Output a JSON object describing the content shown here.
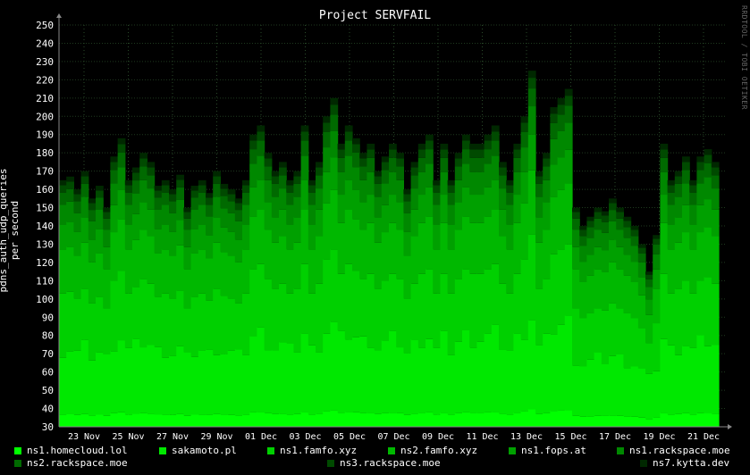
{
  "chart_data": {
    "type": "area",
    "title": "Project SERVFAIL",
    "ylabel": "pdns_auth_udp_queries per second",
    "watermark": "RRDTOOL / TOBI OETIKER",
    "ylim": [
      30,
      250
    ],
    "yticks": [
      30,
      40,
      50,
      60,
      70,
      80,
      90,
      100,
      110,
      120,
      130,
      140,
      150,
      160,
      170,
      180,
      190,
      200,
      210,
      220,
      230,
      240,
      250
    ],
    "xticks": [
      "23 Nov",
      "25 Nov",
      "27 Nov",
      "29 Nov",
      "01 Dec",
      "03 Dec",
      "05 Dec",
      "07 Dec",
      "09 Dec",
      "11 Dec",
      "13 Dec",
      "15 Dec",
      "17 Dec",
      "19 Dec",
      "21 Dec"
    ],
    "background": "#000000",
    "grid": true,
    "stacked": true,
    "legend_position": "bottom",
    "series": [
      {
        "name": "ns1.homecloud.lol",
        "color": "#00ff00"
      },
      {
        "name": "sakamoto.pl",
        "color": "#00e800"
      },
      {
        "name": "ns1.famfo.xyz",
        "color": "#00d000"
      },
      {
        "name": "ns2.famfo.xyz",
        "color": "#00b800"
      },
      {
        "name": "ns1.fops.at",
        "color": "#00a000"
      },
      {
        "name": "ns1.rackspace.moe",
        "color": "#008800"
      },
      {
        "name": "ns2.rackspace.moe",
        "color": "#006a00"
      },
      {
        "name": "ns3.rackspace.moe",
        "color": "#004a00"
      },
      {
        "name": "ns7.kytta.dev",
        "color": "#002800"
      }
    ],
    "totals": [
      165,
      167,
      160,
      170,
      155,
      162,
      150,
      178,
      188,
      165,
      172,
      180,
      175,
      162,
      165,
      160,
      168,
      150,
      162,
      165,
      158,
      170,
      163,
      160,
      155,
      165,
      190,
      195,
      180,
      170,
      175,
      165,
      170,
      195,
      165,
      175,
      200,
      210,
      185,
      195,
      188,
      180,
      185,
      170,
      178,
      185,
      180,
      160,
      175,
      185,
      190,
      165,
      185,
      165,
      180,
      190,
      185,
      185,
      190,
      195,
      175,
      165,
      185,
      200,
      225,
      170,
      180,
      205,
      210,
      215,
      150,
      140,
      145,
      150,
      148,
      155,
      150,
      145,
      140,
      130,
      115,
      135,
      185,
      165,
      170,
      178,
      165,
      178,
      182,
      175
    ]
  },
  "legend": {
    "items": [
      "ns1.homecloud.lol",
      "sakamoto.pl",
      "ns1.famfo.xyz",
      "ns2.famfo.xyz",
      "ns1.fops.at",
      "ns1.rackspace.moe",
      "ns2.rackspace.moe",
      "ns3.rackspace.moe",
      "ns7.kytta.dev"
    ]
  }
}
